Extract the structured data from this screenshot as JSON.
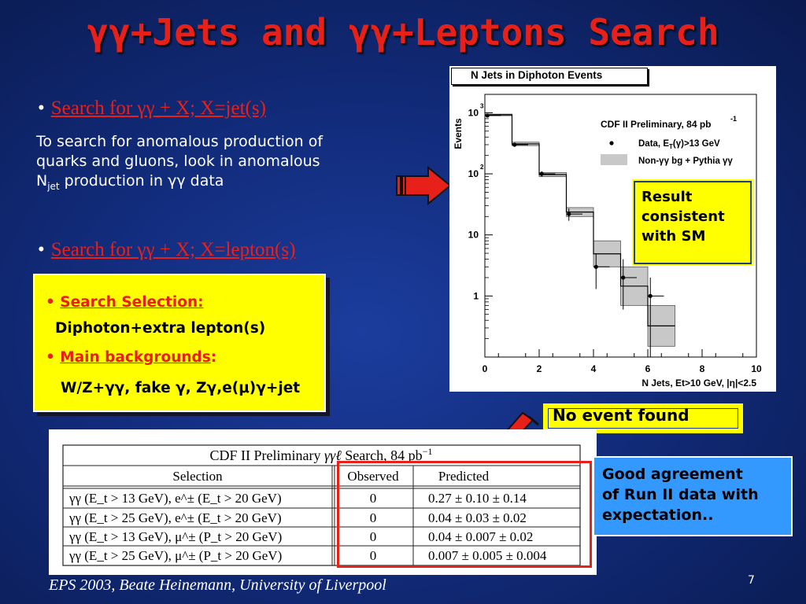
{
  "title": "γγ+Jets and γγ+Leptons Search",
  "bullet1": {
    "text": "Search for γγ + X; X=jet(s)"
  },
  "description": {
    "line1": "To search for anomalous production of",
    "line2": "quarks and gluons, look in anomalous",
    "line3_pre": "N",
    "line3_sub": "jet",
    "line3_post": " production in γγ data"
  },
  "bullet2": {
    "text": "Search for γγ + X; X=lepton(s)"
  },
  "selection_box": {
    "selection_label": "Search Selection:",
    "selection_value": "Diphoton+extra lepton(s)",
    "backgrounds_label": "Main backgrounds",
    "backgrounds_colon": ":",
    "backgrounds_value": "W/Z+γγ, fake γ, Zγ,e(μ)γ+jet"
  },
  "result_box": {
    "line1": "Result",
    "line2": "consistent",
    "line3": "with SM"
  },
  "no_event": "No event found",
  "agreement_box": {
    "line1": "Good agreement",
    "line2": "of  Run II data with",
    "line3": "expectation.."
  },
  "footer": "EPS 2003, Beate Heinemann, University of Liverpool",
  "page_number": "7",
  "colors": {
    "title_red": "#e8201a",
    "yellow": "#ffff00",
    "blue_box": "#3399ff",
    "arrow_red": "#e8201a"
  },
  "chart_data": {
    "type": "bar",
    "title": "N Jets in Diphoton Events",
    "label": "CDF II Preliminary, 84 pb",
    "label_sup": "-1",
    "ylabel": "Events",
    "xlabel": "N Jets, Et>10 GeV, |η|<2.5",
    "log_y": true,
    "xlim": [
      0,
      10
    ],
    "ylim": [
      0.1,
      2000
    ],
    "x_ticks": [
      "0",
      "2",
      "4",
      "6",
      "8",
      "10"
    ],
    "y_ticks": [
      {
        "base": "10",
        "exp": "3",
        "value": 1000
      },
      {
        "base": "10",
        "exp": "2",
        "value": 100
      },
      {
        "base": "10",
        "exp": "",
        "value": 10
      },
      {
        "base": "1",
        "exp": "",
        "value": 1
      }
    ],
    "legend": [
      {
        "symbol": "dot",
        "label": "Data, E",
        "sub": "T",
        "label2": "(γ)>13 GeV"
      },
      {
        "symbol": "band",
        "label": "Non-γγ bg + Pythia γγ"
      }
    ],
    "bins": [
      0,
      1,
      2,
      3,
      4,
      5,
      6,
      7
    ],
    "data": [
      {
        "x": 0,
        "y": 900,
        "ylo": 870,
        "yhi": 930
      },
      {
        "x": 1,
        "y": 300,
        "ylo": 285,
        "yhi": 318
      },
      {
        "x": 2,
        "y": 100,
        "ylo": 90,
        "yhi": 110
      },
      {
        "x": 3,
        "y": 22,
        "ylo": 17,
        "yhi": 27
      },
      {
        "x": 4,
        "y": 3,
        "ylo": 1.3,
        "yhi": 5
      },
      {
        "x": 5,
        "y": 2,
        "ylo": 0.6,
        "yhi": 4
      },
      {
        "x": 6,
        "y": 1,
        "ylo": 0.1,
        "yhi": 2
      }
    ],
    "prediction": [
      {
        "lo": 900,
        "hi": 950
      },
      {
        "lo": 290,
        "hi": 330
      },
      {
        "lo": 90,
        "hi": 105
      },
      {
        "lo": 20,
        "hi": 28
      },
      {
        "lo": 3,
        "hi": 8
      },
      {
        "lo": 0.7,
        "hi": 3
      },
      {
        "lo": 0.15,
        "hi": 0.7
      }
    ]
  },
  "table": {
    "caption_pre": "CDF II Preliminary ",
    "caption_sym": "γγℓ",
    "caption_post": " Search, 84 pb",
    "caption_sup": "−1",
    "headers": [
      "Selection",
      "Observed",
      "Predicted"
    ],
    "rows": [
      {
        "selection": "γγ (E_t > 13 GeV), e^± (E_t > 20 GeV)",
        "observed": "0",
        "predicted": "0.27 ± 0.10 ± 0.14"
      },
      {
        "selection": "γγ (E_t > 25 GeV), e^± (E_t > 20 GeV)",
        "observed": "0",
        "predicted": "0.04 ± 0.03 ± 0.02"
      },
      {
        "selection": "γγ (E_t > 13 GeV), μ^± (P_t > 20 GeV)",
        "observed": "0",
        "predicted": "0.04 ± 0.007 ± 0.02"
      },
      {
        "selection": "γγ (E_t > 25 GeV), μ^± (P_t > 20 GeV)",
        "observed": "0",
        "predicted": "0.007 ± 0.005 ± 0.004"
      }
    ]
  }
}
